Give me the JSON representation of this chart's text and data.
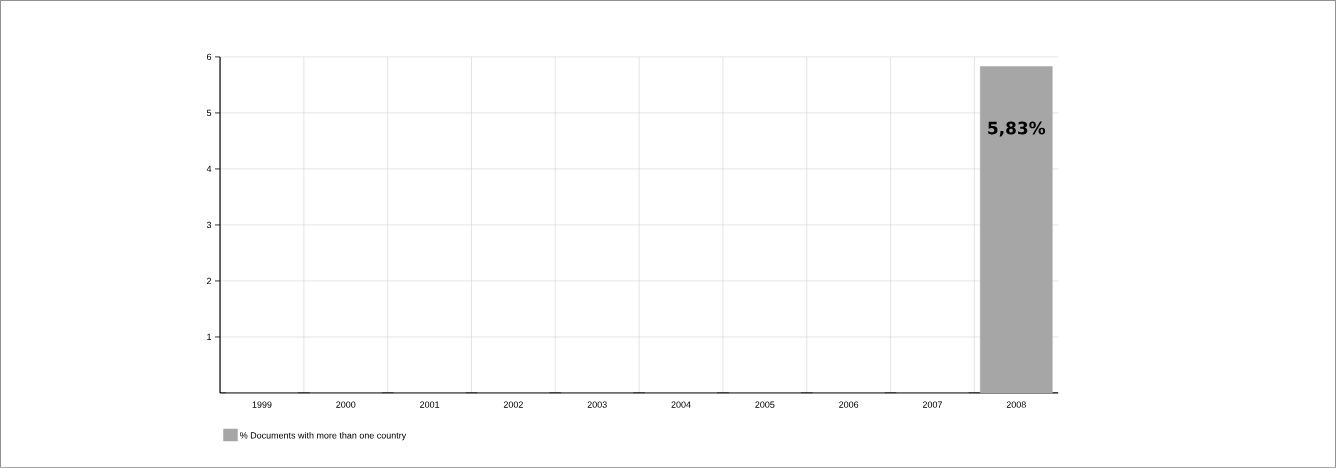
{
  "chart_data": {
    "type": "bar",
    "categories": [
      "1999",
      "2000",
      "2001",
      "2002",
      "2003",
      "2004",
      "2005",
      "2006",
      "2007",
      "2008"
    ],
    "series": [
      {
        "name": "% Documents with more than one country",
        "color": "#a6a6a6",
        "values": [
          0,
          0,
          0,
          0,
          0,
          0,
          0,
          0,
          0,
          5.83
        ],
        "value_labels": [
          null,
          null,
          null,
          null,
          null,
          null,
          null,
          null,
          null,
          "5,83%"
        ]
      }
    ],
    "ylim": [
      0,
      6
    ],
    "yticks": [
      1,
      2,
      3,
      4,
      5,
      6
    ],
    "grid": true,
    "legend": "bottom left"
  }
}
